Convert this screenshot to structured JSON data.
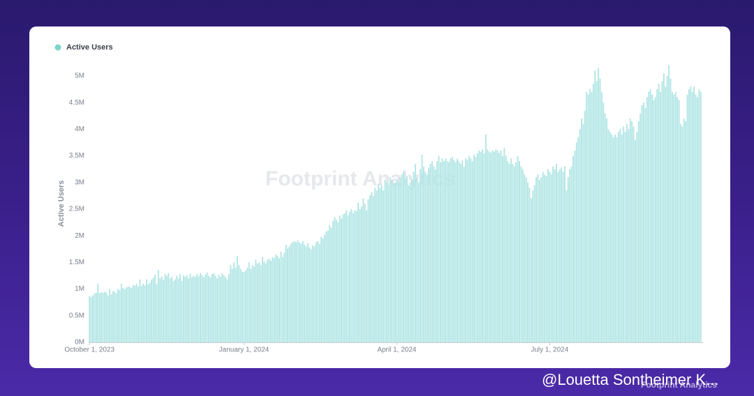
{
  "chart_data": {
    "type": "bar",
    "legend": "Active Users",
    "y_label": "Active Users",
    "watermark": "Footprint Analytics",
    "color": "#b2e6e5",
    "legend_color": "#7fd5cc",
    "ylim": [
      0,
      5300000
    ],
    "yticks": [
      {
        "value": 0,
        "label": "0M"
      },
      {
        "value": 500000,
        "label": "0.5M"
      },
      {
        "value": 1000000,
        "label": "1M"
      },
      {
        "value": 1500000,
        "label": "1.5M"
      },
      {
        "value": 2000000,
        "label": "2M"
      },
      {
        "value": 2500000,
        "label": "2.5M"
      },
      {
        "value": 3000000,
        "label": "3M"
      },
      {
        "value": 3500000,
        "label": "3.5M"
      },
      {
        "value": 4000000,
        "label": "4M"
      },
      {
        "value": 4500000,
        "label": "4.5M"
      },
      {
        "value": 5000000,
        "label": "5M"
      }
    ],
    "categories": [
      "October 1, 2023",
      null,
      null,
      null,
      null,
      null,
      null,
      null,
      null,
      null,
      null,
      null,
      null,
      null,
      null,
      null,
      null,
      null,
      null,
      null,
      null,
      null,
      null,
      null,
      null,
      null,
      null,
      null,
      null,
      null,
      null,
      null,
      null,
      null,
      null,
      null,
      null,
      null,
      null,
      null,
      null,
      null,
      null,
      null,
      null,
      null,
      null,
      null,
      null,
      null,
      null,
      null,
      null,
      null,
      null,
      null,
      null,
      null,
      null,
      null,
      null,
      null,
      null,
      null,
      null,
      null,
      null,
      null,
      null,
      null,
      null,
      null,
      null,
      null,
      null,
      null,
      null,
      null,
      null,
      null,
      null,
      null,
      null,
      null,
      null,
      null,
      null,
      null,
      null,
      null,
      null,
      null,
      "January 1, 2024",
      null,
      null,
      null,
      null,
      null,
      null,
      null,
      null,
      null,
      null,
      null,
      null,
      null,
      null,
      null,
      null,
      null,
      null,
      null,
      null,
      null,
      null,
      null,
      null,
      null,
      null,
      null,
      null,
      null,
      null,
      null,
      null,
      null,
      null,
      null,
      null,
      null,
      null,
      null,
      null,
      null,
      null,
      null,
      null,
      null,
      null,
      null,
      null,
      null,
      null,
      null,
      null,
      null,
      null,
      null,
      null,
      null,
      null,
      null,
      null,
      null,
      null,
      null,
      null,
      null,
      null,
      null,
      null,
      null,
      null,
      null,
      null,
      null,
      null,
      null,
      null,
      null,
      null,
      null,
      null,
      null,
      null,
      null,
      null,
      null,
      null,
      null,
      null,
      null,
      null,
      "April 1, 2024",
      null,
      null,
      null,
      null,
      null,
      null,
      null,
      null,
      null,
      null,
      null,
      null,
      null,
      null,
      null,
      null,
      null,
      null,
      null,
      null,
      null,
      null,
      null,
      null,
      null,
      null,
      null,
      null,
      null,
      null,
      null,
      null,
      null,
      null,
      null,
      null,
      null,
      null,
      null,
      null,
      null,
      null,
      null,
      null,
      null,
      null,
      null,
      null,
      null,
      null,
      null,
      null,
      null,
      null,
      null,
      null,
      null,
      null,
      null,
      null,
      null,
      null,
      null,
      null,
      null,
      null,
      null,
      null,
      null,
      null,
      null,
      null,
      null,
      null,
      null,
      null,
      null,
      null,
      null,
      null,
      null,
      null,
      null,
      null,
      null,
      null,
      null,
      null,
      null,
      null,
      "July 1, 2024",
      null,
      null,
      null,
      null,
      null,
      null,
      null,
      null,
      null,
      null,
      null,
      null,
      null,
      null,
      null,
      null,
      null,
      null,
      null,
      null,
      null,
      null,
      null,
      null,
      null,
      null,
      null,
      null,
      null,
      null,
      null,
      null,
      null,
      null,
      null,
      null,
      null,
      null,
      null,
      null,
      null,
      null,
      null,
      null,
      null,
      null,
      null,
      null,
      null,
      null,
      null,
      null,
      null,
      null,
      null,
      null,
      null,
      null,
      null,
      null,
      null,
      null,
      null,
      null,
      null,
      null,
      null,
      null,
      null,
      null,
      null,
      null,
      null,
      null,
      null,
      null,
      null,
      null,
      null,
      null,
      null,
      null,
      null,
      null,
      null,
      null,
      null,
      null,
      null,
      null
    ],
    "values": [
      870000,
      850000,
      880000,
      920000,
      930000,
      1100000,
      920000,
      940000,
      930000,
      950000,
      940000,
      880000,
      1000000,
      900000,
      960000,
      950000,
      920000,
      1000000,
      980000,
      1100000,
      1020000,
      1000000,
      1030000,
      1050000,
      1040000,
      1020000,
      1080000,
      1060000,
      1100000,
      1050000,
      1180000,
      1060000,
      1100000,
      1070000,
      1180000,
      1090000,
      1120000,
      1180000,
      1210000,
      1270000,
      1100000,
      1360000,
      1200000,
      1240000,
      1170000,
      1280000,
      1250000,
      1300000,
      1200000,
      1230000,
      1150000,
      1180000,
      1250000,
      1200000,
      1280000,
      1150000,
      1260000,
      1230000,
      1260000,
      1200000,
      1290000,
      1220000,
      1250000,
      1230000,
      1280000,
      1240000,
      1300000,
      1260000,
      1220000,
      1270000,
      1310000,
      1250000,
      1220000,
      1280000,
      1300000,
      1250000,
      1200000,
      1270000,
      1230000,
      1300000,
      1260000,
      1220000,
      1180000,
      1280000,
      1450000,
      1380000,
      1500000,
      1400000,
      1620000,
      1450000,
      1380000,
      1320000,
      1320000,
      1350000,
      1400000,
      1500000,
      1380000,
      1450000,
      1420000,
      1550000,
      1480000,
      1500000,
      1450000,
      1600000,
      1520000,
      1480000,
      1550000,
      1570000,
      1530000,
      1600000,
      1580000,
      1650000,
      1620000,
      1580000,
      1700000,
      1600000,
      1680000,
      1830000,
      1760000,
      1800000,
      1850000,
      1880000,
      1900000,
      1880000,
      1920000,
      1870000,
      1850000,
      1900000,
      1830000,
      1800000,
      1860000,
      1780000,
      1750000,
      1820000,
      1800000,
      1880000,
      1900000,
      1850000,
      1980000,
      1950000,
      2020000,
      2080000,
      2100000,
      2200000,
      2150000,
      2280000,
      2350000,
      2300000,
      2250000,
      2380000,
      2320000,
      2400000,
      2420000,
      2480000,
      2380000,
      2450000,
      2500000,
      2420000,
      2480000,
      2460000,
      2620000,
      2500000,
      2550000,
      2700000,
      2600000,
      2480000,
      2680000,
      2760000,
      2820000,
      2750000,
      2900000,
      2850000,
      2980000,
      2900000,
      2950000,
      2850000,
      3050000,
      3000000,
      2950000,
      3100000,
      3050000,
      2980000,
      3000000,
      3050000,
      3000000,
      3100000,
      3150000,
      3200000,
      3080000,
      3120000,
      2950000,
      3000000,
      3050000,
      3200000,
      3350000,
      3100000,
      3000000,
      3250000,
      3520000,
      3300000,
      3200000,
      3150000,
      3280000,
      3350000,
      3400000,
      3300000,
      3250000,
      3400000,
      3500000,
      3380000,
      3450000,
      3400000,
      3450000,
      3400000,
      3380000,
      3450000,
      3480000,
      3420000,
      3380000,
      3450000,
      3400000,
      3350000,
      3420000,
      3300000,
      3450000,
      3420000,
      3500000,
      3450000,
      3400000,
      3520000,
      3480000,
      3550000,
      3600000,
      3580000,
      3620000,
      3550000,
      3900000,
      3620000,
      3580000,
      3560000,
      3600000,
      3580000,
      3620000,
      3600000,
      3550000,
      3600000,
      3500000,
      3650000,
      3500000,
      3400000,
      3350000,
      3450000,
      3350000,
      3300000,
      3380000,
      3500000,
      3400000,
      3300000,
      3250000,
      3150000,
      3100000,
      3000000,
      2900000,
      2700000,
      2850000,
      2950000,
      3100000,
      3150000,
      3050000,
      3100000,
      3200000,
      3150000,
      3120000,
      3250000,
      3200000,
      3150000,
      3300000,
      3250000,
      3350000,
      3200000,
      3250000,
      3280000,
      3200000,
      3300000,
      2850000,
      3100000,
      3250000,
      3300000,
      3500000,
      3600000,
      3750000,
      3850000,
      4000000,
      4200000,
      4100000,
      4350000,
      4700000,
      4650000,
      4750000,
      4700000,
      4850000,
      5100000,
      4900000,
      5150000,
      4950000,
      4700000,
      4500000,
      4300000,
      4200000,
      4000000,
      3950000,
      3900000,
      3850000,
      3900000,
      3850000,
      3950000,
      4000000,
      3900000,
      4050000,
      3950000,
      4100000,
      4000000,
      4200000,
      4150000,
      4050000,
      3800000,
      3950000,
      4150000,
      4300000,
      4450000,
      4500000,
      4400000,
      4600000,
      4700000,
      4750000,
      4650000,
      4550000,
      4600000,
      4750000,
      4850000,
      4700000,
      4900000,
      5050000,
      4800000,
      5000000,
      5200000,
      4950000,
      4700000,
      4650000,
      4700000,
      4600000,
      4550000,
      4100000,
      4050000,
      4200000,
      4150000,
      4650000,
      4750000,
      4800000,
      4700000,
      4800000,
      4650000,
      4600000,
      4750000,
      4700000
    ]
  },
  "footer": {
    "handle": "@Louetta Sontheimer K...",
    "brand": "Footprint Analytics"
  }
}
